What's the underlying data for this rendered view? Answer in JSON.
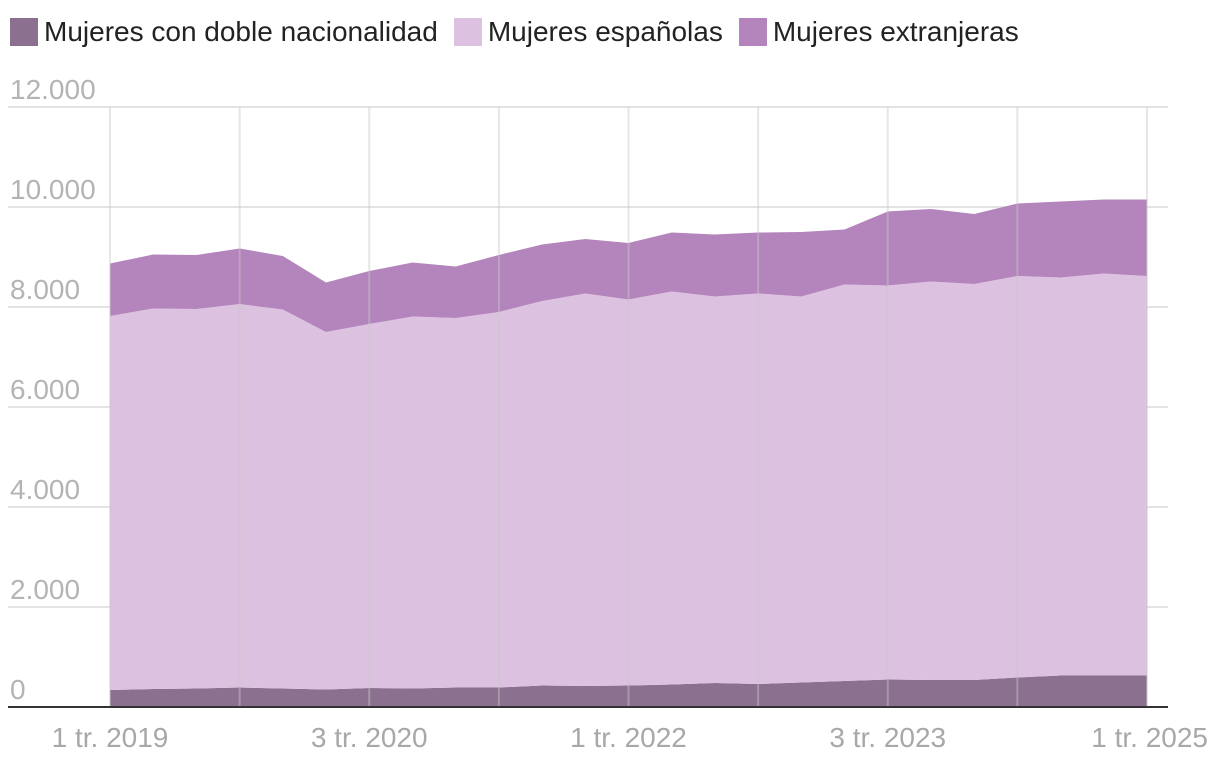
{
  "chart_data": {
    "type": "area",
    "stacked": true,
    "title": "",
    "xlabel": "",
    "ylabel": "",
    "ylim": [
      0,
      12000
    ],
    "yticks": [
      0,
      2000,
      4000,
      6000,
      8000,
      10000,
      12000
    ],
    "ytick_labels": [
      "0",
      "2.000",
      "4.000",
      "6.000",
      "8.000",
      "10.000",
      "12.000"
    ],
    "x_labels": [
      {
        "index": 0,
        "label": "1 tr. 2019"
      },
      {
        "index": 6,
        "label": "3 tr. 2020"
      },
      {
        "index": 12,
        "label": "1 tr. 2022"
      },
      {
        "index": 18,
        "label": "3 tr. 2023"
      },
      {
        "index": 24,
        "label": "1 tr. 2025"
      }
    ],
    "grid_indices": [
      0,
      3,
      6,
      9,
      12,
      15,
      18,
      21,
      24
    ],
    "periods": 25,
    "legend_position": "top-left",
    "series": [
      {
        "name": "Mujeres con doble nacionalidad",
        "color": "#8c7090",
        "values": [
          340,
          360,
          370,
          390,
          370,
          350,
          380,
          370,
          390,
          390,
          430,
          420,
          430,
          450,
          480,
          460,
          490,
          520,
          550,
          540,
          540,
          590,
          630,
          630,
          630
        ]
      },
      {
        "name": "Mujeres españolas",
        "color": "#dcc2e0",
        "values": [
          7480,
          7610,
          7590,
          7670,
          7580,
          7150,
          7280,
          7440,
          7390,
          7510,
          7690,
          7850,
          7720,
          7860,
          7730,
          7810,
          7720,
          7930,
          7880,
          7970,
          7920,
          8030,
          7960,
          8040,
          7990
        ]
      },
      {
        "name": "Mujeres extranjeras",
        "color": "#b484bc",
        "values": [
          1050,
          1080,
          1080,
          1110,
          1070,
          990,
          1060,
          1080,
          1030,
          1140,
          1130,
          1090,
          1130,
          1180,
          1240,
          1220,
          1290,
          1100,
          1480,
          1450,
          1400,
          1450,
          1520,
          1480,
          1530
        ]
      }
    ]
  }
}
